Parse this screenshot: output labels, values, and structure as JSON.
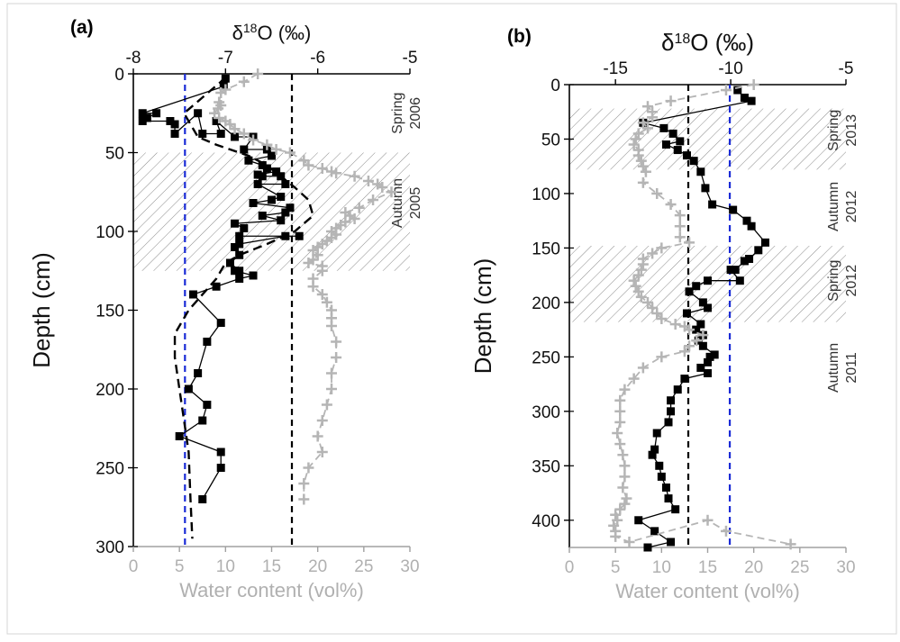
{
  "chart_data": [
    {
      "type": "scatter",
      "panel_label": "(a)",
      "top_axis": {
        "label_prefix": "δ",
        "label_sup": "18",
        "label_suffix": "O (‰)",
        "range": [
          -8,
          -5
        ],
        "ticks": [
          -8,
          -7,
          -6,
          -5
        ]
      },
      "bottom_axis": {
        "label": "Water content (vol%)",
        "range": [
          0,
          30
        ],
        "ticks": [
          0,
          5,
          10,
          15,
          20,
          25,
          30
        ]
      },
      "y_axis": {
        "label": "Depth (cm)",
        "range": [
          0,
          300
        ],
        "ticks": [
          0,
          50,
          100,
          150,
          200,
          250,
          300
        ],
        "inverted": true
      },
      "hatched_bands": [
        {
          "depth": [
            50,
            125
          ]
        }
      ],
      "reference_lines": [
        {
          "axis": "water",
          "value": 5.6,
          "color": "#1a2bd6"
        },
        {
          "axis": "water",
          "value": 17.2,
          "color": "#000000"
        }
      ],
      "season_labels": [
        {
          "lines": [
            "Spring",
            "2006"
          ],
          "depth": 25
        },
        {
          "lines": [
            "Autumn",
            "2005"
          ],
          "depth": 82
        }
      ],
      "series": [
        {
          "role": "delta18O_measured",
          "marker": "square",
          "color": "#000000",
          "x": [
            -7.0,
            -7.02,
            -7.9,
            -7.75,
            -7.85,
            -7.9,
            -7.6,
            -7.55,
            -7.55,
            -7.3,
            -7.25,
            -7.05,
            -7.1,
            -6.9,
            -6.7,
            -6.8,
            -6.55,
            -6.5,
            -6.75,
            -6.6,
            -6.55,
            -6.45,
            -6.65,
            -6.6,
            -6.4,
            -6.35,
            -6.65,
            -6.4,
            -6.5,
            -6.7,
            -6.3,
            -6.35,
            -6.6,
            -6.4,
            -6.9,
            -6.8,
            -6.85,
            -6.2,
            -6.35,
            -6.85,
            -6.9,
            -6.85,
            -6.95,
            -6.85,
            -6.9,
            -6.7,
            -6.85,
            -7.1,
            -7.35,
            -7.05,
            -7.2,
            -7.3,
            -7.4,
            -7.2,
            -7.25,
            -7.5,
            -7.05,
            -7.05,
            -7.25
          ],
          "y": [
            3,
            8,
            25,
            25,
            28,
            30,
            30,
            32,
            38,
            25,
            38,
            38,
            30,
            40,
            40,
            48,
            48,
            52,
            55,
            58,
            60,
            62,
            64,
            65,
            65,
            70,
            70,
            78,
            80,
            82,
            85,
            88,
            90,
            93,
            95,
            98,
            103,
            103,
            103,
            108,
            110,
            115,
            120,
            125,
            125,
            128,
            130,
            135,
            140,
            158,
            170,
            190,
            200,
            210,
            220,
            230,
            240,
            250,
            270
          ]
        },
        {
          "role": "delta18O_model",
          "style": "dashed",
          "color": "#000000",
          "x": [
            -7.0,
            -7.05,
            -7.25,
            -7.45,
            -7.3,
            -7.1,
            -6.95,
            -6.75,
            -6.55,
            -6.4,
            -6.25,
            -6.1,
            -6.05,
            -6.25,
            -6.55,
            -6.85,
            -7.0,
            -7.1,
            -7.4,
            -7.55,
            -7.55,
            -7.5,
            -7.45,
            -7.4,
            -7.38,
            -7.36
          ],
          "y": [
            2,
            5,
            15,
            25,
            40,
            45,
            48,
            52,
            58,
            65,
            72,
            80,
            90,
            100,
            108,
            115,
            120,
            130,
            150,
            165,
            180,
            200,
            220,
            240,
            270,
            295
          ]
        },
        {
          "role": "water_content",
          "marker": "plus",
          "color": "#b5b5b5",
          "line_style": "dashed",
          "x": [
            13.5,
            12,
            10,
            9.5,
            9.3,
            9.5,
            9.2,
            8.8,
            9.3,
            10,
            10.5,
            11,
            12,
            13,
            14.5,
            15.5,
            17,
            18.5,
            19,
            20.5,
            21.5,
            22,
            24,
            25.5,
            26.5,
            27,
            28,
            26,
            24.5,
            23,
            23.5,
            24,
            23,
            22.5,
            22,
            21.5,
            22,
            21.5,
            21,
            20.5,
            20,
            19.5,
            20,
            19.5,
            19,
            20.5,
            20.5,
            19.5,
            19.5,
            20.5,
            21,
            21.5,
            21.5,
            21.5,
            22,
            22,
            21.5,
            21.5,
            21,
            20.5,
            20,
            20.5,
            19,
            18.5,
            18.5
          ],
          "y": [
            0,
            5,
            10,
            12,
            18,
            20,
            22,
            25,
            28,
            30,
            32,
            35,
            38,
            42,
            45,
            48,
            50,
            55,
            58,
            60,
            62,
            63,
            65,
            68,
            70,
            72,
            75,
            80,
            85,
            88,
            90,
            92,
            94,
            96,
            98,
            100,
            102,
            104,
            106,
            108,
            110,
            112,
            115,
            118,
            120,
            122,
            125,
            130,
            135,
            140,
            145,
            150,
            155,
            160,
            170,
            180,
            190,
            200,
            210,
            220,
            230,
            240,
            250,
            260,
            270
          ]
        }
      ]
    },
    {
      "type": "scatter",
      "panel_label": "(b)",
      "top_axis": {
        "label_prefix": "δ",
        "label_sup": "18",
        "label_suffix": "O (‰)",
        "range": [
          -17,
          -5
        ],
        "ticks": [
          -15,
          -10,
          -5
        ]
      },
      "bottom_axis": {
        "label": "Water content (vol%)",
        "range": [
          0,
          30
        ],
        "ticks": [
          0,
          5,
          10,
          15,
          20,
          25,
          30
        ]
      },
      "y_axis": {
        "label": "Depth (cm)",
        "range": [
          0,
          425
        ],
        "ticks": [
          0,
          50,
          100,
          150,
          200,
          250,
          300,
          350,
          400
        ],
        "inverted": true
      },
      "hatched_bands": [
        {
          "depth": [
            22,
            78
          ]
        },
        {
          "depth": [
            148,
            218
          ]
        }
      ],
      "reference_lines": [
        {
          "axis": "water",
          "value": 12.9,
          "color": "#000000"
        },
        {
          "axis": "water",
          "value": 17.4,
          "color": "#1a2bd6"
        }
      ],
      "season_labels": [
        {
          "lines": [
            "Spring",
            "2013"
          ],
          "depth": 42
        },
        {
          "lines": [
            "Autumn",
            "2012"
          ],
          "depth": 112
        },
        {
          "lines": [
            "Spring",
            "2012"
          ],
          "depth": 180
        },
        {
          "lines": [
            "Autumn",
            "2011"
          ],
          "depth": 260
        }
      ],
      "series": [
        {
          "role": "delta18O_measured",
          "marker": "square",
          "color": "#000000",
          "x": [
            -9.7,
            -9.4,
            -9.1,
            -13.8,
            -12.9,
            -12.5,
            -12.2,
            -12.8,
            -12.3,
            -11.9,
            -11.6,
            -11.3,
            -11.1,
            -10.8,
            -9.9,
            -9.3,
            -9.1,
            -8.5,
            -8.8,
            -9.2,
            -9.4,
            -9.8,
            -10.0,
            -9.6,
            -11.0,
            -11.5,
            -11.8,
            -11.2,
            -11.0,
            -11.9,
            -11.3,
            -11.5,
            -11.2,
            -11.4,
            -11.2,
            -10.7,
            -10.9,
            -11.0,
            -11.3,
            -11.0,
            -12.0,
            -12.3,
            -12.6,
            -12.6,
            -12.7,
            -13.2,
            -13.3,
            -13.4,
            -13.1,
            -13.0,
            -12.8,
            -12.7,
            -12.4,
            -14.0,
            -13.3,
            -12.6,
            -13.6
          ],
          "y": [
            5,
            12,
            15,
            35,
            40,
            45,
            52,
            55,
            60,
            65,
            70,
            80,
            95,
            110,
            115,
            125,
            130,
            145,
            152,
            160,
            162,
            170,
            170,
            180,
            180,
            185,
            190,
            200,
            205,
            210,
            220,
            225,
            230,
            235,
            240,
            248,
            250,
            255,
            260,
            265,
            270,
            280,
            290,
            300,
            310,
            320,
            335,
            340,
            350,
            360,
            370,
            380,
            390,
            400,
            410,
            420,
            425
          ]
        },
        {
          "role": "water_content",
          "marker": "plus",
          "color": "#b5b5b5",
          "line_style": "dashed",
          "x": [
            20,
            17,
            11,
            8.5,
            9,
            9,
            8,
            8.5,
            7.5,
            7.2,
            7,
            7.5,
            7.5,
            7.8,
            8,
            8.3,
            8,
            9.5,
            11,
            12,
            12,
            12,
            13,
            10,
            9,
            8,
            8,
            7.8,
            7.5,
            7,
            7.2,
            7.5,
            7.8,
            8.5,
            9,
            9.5,
            10,
            11.5,
            12.5,
            13,
            14.5,
            13.8,
            13,
            12.5,
            10,
            8,
            7,
            6,
            5.5,
            5.5,
            5.5,
            5.2,
            5.5,
            5.8,
            6,
            6,
            5.8,
            6.2,
            6,
            5.5,
            5,
            5.2,
            4.8,
            5,
            5,
            6.5,
            15,
            17,
            24
          ],
          "y": [
            0,
            5,
            15,
            20,
            25,
            30,
            35,
            40,
            45,
            50,
            55,
            60,
            65,
            70,
            75,
            80,
            90,
            100,
            110,
            120,
            130,
            140,
            145,
            150,
            155,
            160,
            165,
            170,
            175,
            180,
            185,
            190,
            195,
            200,
            205,
            210,
            215,
            220,
            222,
            225,
            230,
            235,
            240,
            245,
            250,
            260,
            270,
            280,
            290,
            300,
            310,
            320,
            330,
            340,
            350,
            360,
            370,
            380,
            385,
            390,
            395,
            400,
            405,
            410,
            415,
            420,
            400,
            410,
            422
          ]
        }
      ]
    }
  ]
}
